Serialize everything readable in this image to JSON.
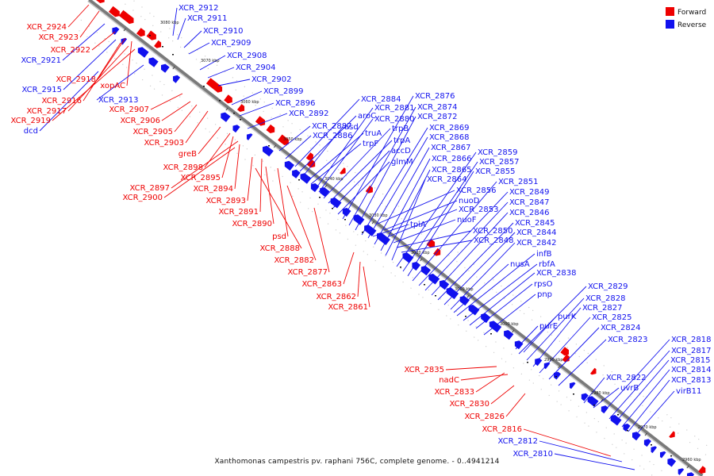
{
  "footer": "Xanthomonas campestris pv. raphani 756C, complete genome. - 0..4941214",
  "legend": [
    {
      "name": "Forward",
      "color": "#ee0000"
    },
    {
      "name": "Reverse",
      "color": "#1111ee"
    }
  ],
  "colors": {
    "forward": "#ee0000",
    "reverse": "#1111ee",
    "axis": "#888888"
  },
  "kbp_ticks": [
    "3080 kbp",
    "3070 kbp",
    "3060 kbp",
    "3050 kbp",
    "3040 kbp",
    "3030 kbp",
    "3020 kbp",
    "3010 kbp",
    "3000 kbp",
    "2990 kbp",
    "2980 kbp",
    "2970 kbp",
    "2960 kbp"
  ],
  "forward_labels": [
    "XCR_2924",
    "XCR_2923",
    "XCR_2922",
    "XCR_2918",
    "xopAC",
    "XCR_2916",
    "XCR_2917",
    "XCR_2919",
    "XCR_2907",
    "XCR_2906",
    "XCR_2905",
    "XCR_2903",
    "greB",
    "XCR_2898",
    "XCR_2895",
    "XCR_2897",
    "XCR_2894",
    "XCR_2900",
    "XCR_2893",
    "XCR_2891",
    "XCR_2890",
    "psd",
    "XCR_2888",
    "XCR_2882",
    "XCR_2877",
    "XCR_2863",
    "XCR_2862",
    "XCR_2861",
    "XCR_2835",
    "nadC",
    "XCR_2833",
    "XCR_2830",
    "XCR_2826",
    "XCR_2816"
  ],
  "reverse_labels": [
    "XCR_2912",
    "XCR_2911",
    "XCR_2910",
    "XCR_2909",
    "XCR_2908",
    "XCR_2904",
    "XCR_2902",
    "XCR_2899",
    "XCR_2896",
    "XCR_2892",
    "XCR_2887",
    "XCR_2886",
    "XCR_2884",
    "aroC",
    "asd",
    "truA",
    "trpF",
    "XCR_2881",
    "XCR_2880",
    "trpB",
    "trpA",
    "accD",
    "glmM",
    "XCR_2876",
    "XCR_2874",
    "XCR_2872",
    "XCR_2869",
    "XCR_2868",
    "XCR_2867",
    "XCR_2866",
    "XCR_2865",
    "XCR_2864",
    "XCR_2859",
    "XCR_2857",
    "XCR_2855",
    "XCR_2851",
    "XCR_2849",
    "XCR_2847",
    "XCR_2846",
    "XCR_2845",
    "XCR_2844",
    "XCR_2842",
    "XCR_2856",
    "nuoD",
    "XCR_2853",
    "nuoF",
    "XCR_2850",
    "XCR_2848",
    "tpiA",
    "infB",
    "rbfA",
    "XCR_2838",
    "nusA",
    "rpsO",
    "pnp",
    "XCR_2829",
    "XCR_2828",
    "XCR_2827",
    "purK",
    "XCR_2825",
    "purE",
    "XCR_2824",
    "XCR_2823",
    "XCR_2818",
    "XCR_2817",
    "XCR_2815",
    "XCR_2814",
    "XCR_2813",
    "XCR_2822",
    "uvrB",
    "virB11",
    "XCR_2921",
    "XCR_2915",
    "XCR_2913",
    "dcd",
    "XCR_2812",
    "XCR_2810"
  ]
}
